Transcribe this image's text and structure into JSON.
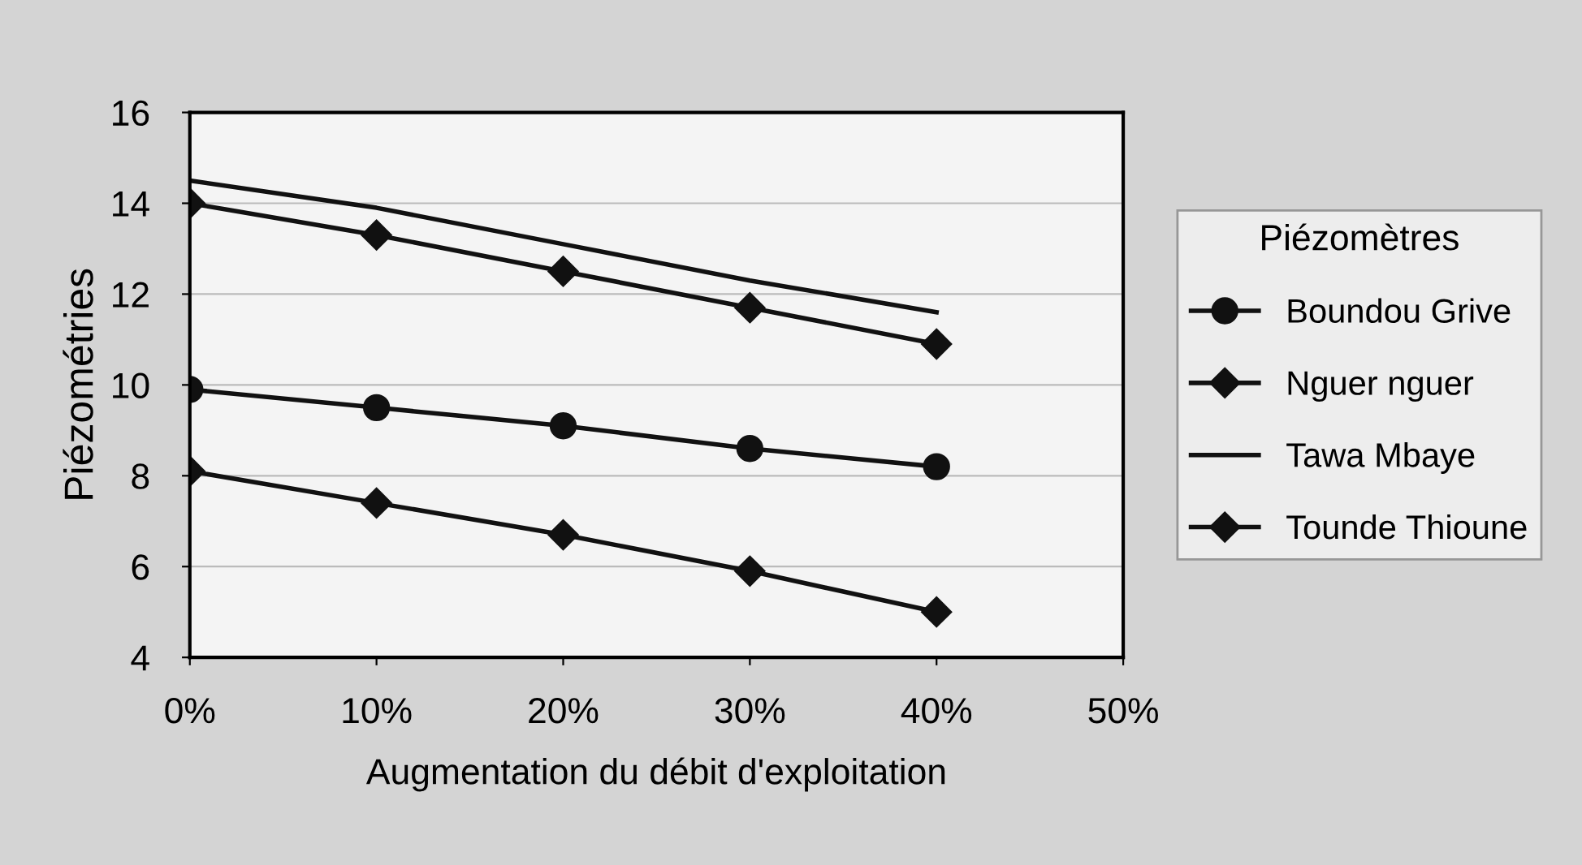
{
  "chart_data": {
    "type": "line",
    "xlabel": "Augmentation du débit d'exploitation",
    "ylabel": "Piézométries",
    "legend_title": "Piézomètres",
    "legend": "right",
    "grid": "y",
    "x": [
      0,
      10,
      20,
      30,
      40
    ],
    "xlim": [
      0,
      50
    ],
    "xticks": [
      {
        "value": 0,
        "label": "0%"
      },
      {
        "value": 10,
        "label": "10%"
      },
      {
        "value": 20,
        "label": "20%"
      },
      {
        "value": 30,
        "label": "30%"
      },
      {
        "value": 40,
        "label": "40%"
      },
      {
        "value": 50,
        "label": "50%"
      }
    ],
    "ylim": [
      4,
      16
    ],
    "yticks": [
      4,
      6,
      8,
      10,
      12,
      14,
      16
    ],
    "series": [
      {
        "name": "Boundou Grive",
        "color": "#111111",
        "marker": "circle",
        "values": [
          9.9,
          9.5,
          9.1,
          8.6,
          8.2
        ]
      },
      {
        "name": "Nguer nguer",
        "color": "#111111",
        "marker": "diamond",
        "values": [
          14.0,
          13.3,
          12.5,
          11.7,
          10.9
        ]
      },
      {
        "name": "Tawa Mbaye",
        "color": "#111111",
        "marker": "none",
        "values": [
          14.5,
          13.9,
          13.1,
          12.3,
          11.6
        ]
      },
      {
        "name": "Tounde Thioune",
        "color": "#111111",
        "marker": "diamond",
        "values": [
          8.1,
          7.4,
          6.7,
          5.9,
          5.0
        ]
      }
    ]
  }
}
